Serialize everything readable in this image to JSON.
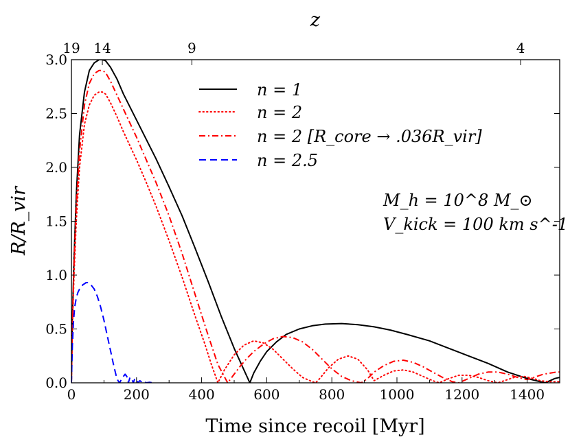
{
  "chart_data": {
    "type": "line",
    "title": "",
    "xlabel": "Time since recoil [Myr]",
    "ylabel": "R/R_vir",
    "top_axis_label": "z",
    "xlim": [
      0,
      1500
    ],
    "ylim": [
      0,
      3.0
    ],
    "grid": false,
    "x_ticks": [
      0,
      200,
      400,
      600,
      800,
      1000,
      1200,
      1400
    ],
    "x_tick_labels": [
      "0",
      "200",
      "400",
      "600",
      "800",
      "1000",
      "1200",
      "1400"
    ],
    "y_ticks": [
      0.0,
      0.5,
      1.0,
      1.5,
      2.0,
      2.5,
      3.0
    ],
    "y_tick_labels": [
      "0.0",
      "0.5",
      "1.0",
      "1.5",
      "2.0",
      "2.5",
      "3.0"
    ],
    "top_ticks": [
      {
        "label": "19",
        "x": 0
      },
      {
        "label": "14",
        "x": 95
      },
      {
        "label": "9",
        "x": 370
      },
      {
        "label": "4",
        "x": 1380
      }
    ],
    "legend": {
      "placement": "top-center",
      "entries": [
        {
          "text": "n = 1",
          "style": "solid",
          "color": "#000000"
        },
        {
          "text": "n = 2",
          "style": "dotted",
          "color": "#ff0000"
        },
        {
          "text": "n = 2  [R_core → .036R_vir]",
          "style": "dashdot",
          "color": "#ff0000"
        },
        {
          "text": "n = 2.5",
          "style": "dashed",
          "color": "#0000ff"
        }
      ]
    },
    "annotations": [
      "M_h = 10^8 M_⊙",
      "V_kick = 100 km s^-1"
    ],
    "series": [
      {
        "name": "n = 1",
        "color": "#000000",
        "style": "solid",
        "x": [
          0,
          3,
          8,
          15,
          25,
          40,
          55,
          70,
          85,
          95,
          105,
          120,
          140,
          160,
          180,
          200,
          230,
          260,
          300,
          340,
          380,
          420,
          460,
          500,
          530,
          548,
          560,
          580,
          600,
          630,
          660,
          700,
          740,
          780,
          830,
          880,
          930,
          980,
          1030,
          1100,
          1160,
          1220,
          1280,
          1340,
          1400,
          1440,
          1455,
          1470,
          1485,
          1500
        ],
        "y": [
          0,
          0.6,
          1.15,
          1.75,
          2.3,
          2.7,
          2.9,
          2.97,
          3.0,
          3.0,
          2.99,
          2.93,
          2.82,
          2.68,
          2.56,
          2.44,
          2.26,
          2.08,
          1.82,
          1.55,
          1.25,
          0.94,
          0.62,
          0.32,
          0.12,
          0.0,
          0.09,
          0.2,
          0.29,
          0.38,
          0.45,
          0.5,
          0.53,
          0.545,
          0.55,
          0.54,
          0.52,
          0.49,
          0.45,
          0.39,
          0.32,
          0.25,
          0.18,
          0.1,
          0.04,
          0.01,
          0.0,
          0.02,
          0.04,
          0.05
        ]
      },
      {
        "name": "n = 2",
        "color": "#ff0000",
        "style": "dotted",
        "x": [
          0,
          3,
          8,
          15,
          25,
          40,
          55,
          70,
          85,
          95,
          105,
          120,
          140,
          160,
          180,
          200,
          230,
          260,
          300,
          340,
          380,
          410,
          430,
          450,
          470,
          500,
          530,
          560,
          590,
          620,
          650,
          680,
          710,
          740,
          750,
          760,
          790,
          820,
          850,
          880,
          910,
          930,
          960,
          990,
          1020,
          1050,
          1080,
          1110,
          1130,
          1160,
          1190,
          1220,
          1250,
          1280,
          1310,
          1330,
          1360,
          1390,
          1420,
          1440,
          1470,
          1500
        ],
        "y": [
          0,
          0.5,
          1.0,
          1.5,
          2.0,
          2.4,
          2.58,
          2.67,
          2.7,
          2.7,
          2.68,
          2.6,
          2.47,
          2.33,
          2.2,
          2.07,
          1.86,
          1.64,
          1.32,
          0.98,
          0.62,
          0.36,
          0.17,
          0.0,
          0.12,
          0.26,
          0.35,
          0.39,
          0.37,
          0.31,
          0.22,
          0.13,
          0.05,
          0.01,
          0.0,
          0.03,
          0.14,
          0.22,
          0.25,
          0.22,
          0.12,
          0.02,
          0.07,
          0.11,
          0.12,
          0.1,
          0.06,
          0.02,
          0.0,
          0.04,
          0.07,
          0.07,
          0.05,
          0.02,
          0.0,
          0.02,
          0.05,
          0.06,
          0.04,
          0.02,
          0.01,
          0.01
        ]
      },
      {
        "name": "n = 2  [R_core → .036R_vir]",
        "color": "#ff0000",
        "style": "dashdot",
        "x": [
          0,
          3,
          8,
          15,
          25,
          40,
          55,
          70,
          85,
          95,
          105,
          120,
          140,
          160,
          180,
          200,
          230,
          260,
          300,
          340,
          380,
          420,
          450,
          480,
          500,
          520,
          540,
          560,
          590,
          620,
          650,
          680,
          710,
          740,
          770,
          800,
          830,
          860,
          890,
          910,
          930,
          960,
          990,
          1020,
          1050,
          1080,
          1110,
          1140,
          1170,
          1190,
          1220,
          1250,
          1280,
          1310,
          1340,
          1370,
          1400,
          1430,
          1450,
          1470,
          1490,
          1500
        ],
        "y": [
          0,
          0.55,
          1.1,
          1.65,
          2.15,
          2.58,
          2.78,
          2.87,
          2.9,
          2.9,
          2.88,
          2.8,
          2.67,
          2.54,
          2.41,
          2.28,
          2.07,
          1.86,
          1.55,
          1.2,
          0.82,
          0.44,
          0.17,
          0.0,
          0.08,
          0.16,
          0.23,
          0.29,
          0.36,
          0.41,
          0.43,
          0.42,
          0.38,
          0.31,
          0.22,
          0.13,
          0.06,
          0.02,
          0.0,
          0.04,
          0.1,
          0.16,
          0.2,
          0.21,
          0.19,
          0.15,
          0.1,
          0.05,
          0.01,
          0.0,
          0.04,
          0.08,
          0.1,
          0.1,
          0.08,
          0.05,
          0.03,
          0.06,
          0.08,
          0.09,
          0.1,
          0.1
        ]
      },
      {
        "name": "n = 2.5",
        "color": "#0000ff",
        "style": "dashed",
        "x": [
          0,
          3,
          6,
          10,
          15,
          20,
          25,
          30,
          35,
          40,
          45,
          50,
          55,
          60,
          70,
          80,
          90,
          100,
          110,
          120,
          130,
          138,
          143,
          148,
          155,
          165,
          170,
          175,
          180,
          185,
          190,
          195,
          200,
          205,
          210,
          215,
          220,
          225,
          230,
          240,
          250
        ],
        "y": [
          0,
          0.35,
          0.55,
          0.7,
          0.79,
          0.84,
          0.87,
          0.89,
          0.91,
          0.92,
          0.93,
          0.93,
          0.92,
          0.91,
          0.87,
          0.8,
          0.7,
          0.58,
          0.44,
          0.3,
          0.16,
          0.06,
          0.02,
          0.0,
          0.04,
          0.08,
          0.06,
          0.0,
          0.05,
          0.04,
          0.0,
          0.04,
          0.03,
          0.0,
          0.02,
          0.01,
          0.0,
          0.01,
          0.0,
          0.005,
          0.0
        ]
      }
    ]
  }
}
